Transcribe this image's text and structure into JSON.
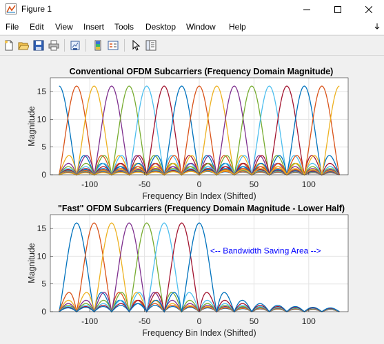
{
  "window": {
    "title": "Figure 1",
    "controls": [
      "minimize",
      "maximize",
      "close"
    ]
  },
  "menu": {
    "items": [
      "File",
      "Edit",
      "View",
      "Insert",
      "Tools",
      "Desktop",
      "Window",
      "Help"
    ]
  },
  "toolbar": {
    "icons": [
      "new-figure-icon",
      "open-file-icon",
      "save-icon",
      "print-icon",
      "link-plot-icon",
      "insert-colorbar-icon",
      "insert-legend-icon",
      "edit-plot-icon",
      "property-inspector-icon"
    ]
  },
  "colors": {
    "series": [
      "#0072BD",
      "#D95319",
      "#EDB120",
      "#7E2F8E",
      "#77AC30",
      "#4DBEEE",
      "#A2142F"
    ],
    "annotation": "#0000FF"
  },
  "chart_data": [
    {
      "type": "line",
      "title": "Conventional OFDM Subcarriers (Frequency Domain Magnitude)",
      "xlabel": "Frequency Bin Index (Shifted)",
      "ylabel": "Magnitude",
      "xlim": [
        -136,
        136
      ],
      "ylim": [
        0,
        17.5
      ],
      "xticks": [
        -100,
        -50,
        0,
        50,
        100
      ],
      "yticks": [
        0,
        5,
        10,
        15
      ],
      "grid": true,
      "subcarrier_peak": 16,
      "subcarrier_centers": [
        -128,
        -112,
        -96,
        -80,
        -64,
        -48,
        -32,
        -16,
        0,
        16,
        32,
        48,
        64,
        80,
        96,
        112,
        128
      ],
      "sample_x_range": [
        -128,
        128
      ],
      "annotation": ""
    },
    {
      "type": "line",
      "title": "\"Fast\" OFDM Subcarriers (Frequency Domain Magnitude - Lower Half)",
      "xlabel": "Frequency Bin Index (Shifted)",
      "ylabel": "Magnitude",
      "xlim": [
        -136,
        136
      ],
      "ylim": [
        0,
        17.5
      ],
      "xticks": [
        -100,
        -50,
        0,
        50,
        100
      ],
      "yticks": [
        0,
        5,
        10,
        15
      ],
      "grid": true,
      "subcarrier_peak": 16,
      "subcarrier_centers": [
        -112,
        -96,
        -80,
        -64,
        -48,
        -32,
        -16,
        0
      ],
      "sample_x_range": [
        -128,
        128
      ],
      "annotation": "<-- Bandwidth Saving Area -->",
      "annotation_x": 10,
      "annotation_y": 10.5
    }
  ]
}
